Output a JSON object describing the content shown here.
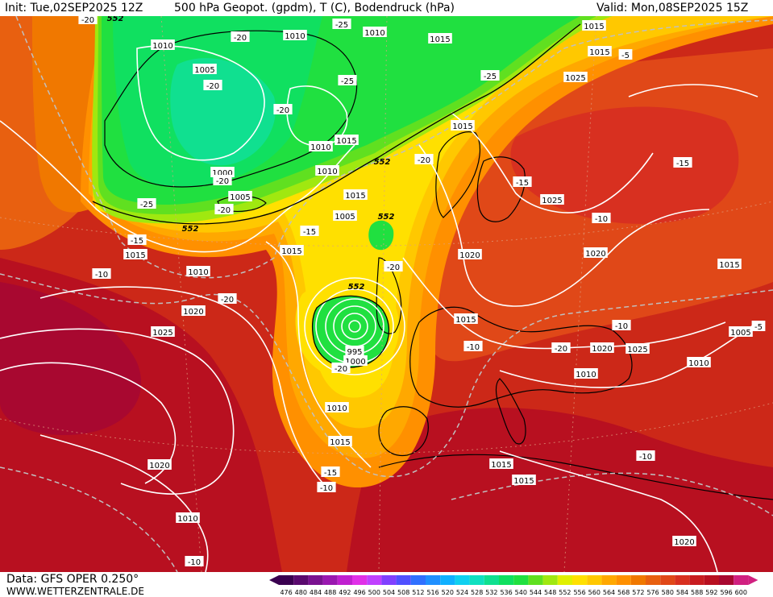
{
  "header": {
    "init": "Init: Tue,02SEP2025 12Z",
    "title": "500 hPa Geopot. (gpdm), T (C), Bodendruck (hPa)",
    "valid": "Valid: Mon,08SEP2025 15Z"
  },
  "footer": {
    "data_source": "Data: GFS OPER 0.250°",
    "website": "WWW.WETTERZENTRALE.DE"
  },
  "legend": {
    "values": [
      "476",
      "480",
      "484",
      "488",
      "492",
      "496",
      "500",
      "504",
      "508",
      "512",
      "516",
      "520",
      "524",
      "528",
      "532",
      "536",
      "540",
      "544",
      "548",
      "552",
      "556",
      "560",
      "564",
      "568",
      "572",
      "576",
      "580",
      "584",
      "588",
      "592",
      "596",
      "600"
    ],
    "colors": [
      "#3a0050",
      "#5a0a6e",
      "#7a1290",
      "#9a18b0",
      "#c020d0",
      "#e030e8",
      "#c040ff",
      "#8040ff",
      "#5050ff",
      "#3070ff",
      "#2090ff",
      "#10b0ff",
      "#10d0f0",
      "#10e0c0",
      "#10e090",
      "#10e060",
      "#20e040",
      "#60e020",
      "#a0e810",
      "#e0f000",
      "#ffe000",
      "#ffc800",
      "#ffa800",
      "#ff9000",
      "#f07800",
      "#e86010",
      "#e04818",
      "#d83020",
      "#c81c20",
      "#b81020",
      "#a80830",
      "#d02080"
    ]
  },
  "labels": {
    "pressure": [
      "1010",
      "1010",
      "1010",
      "1015",
      "1005",
      "1000",
      "1005",
      "1010",
      "1015",
      "1010",
      "1015",
      "1005",
      "995",
      "1000",
      "1010",
      "1015",
      "1015",
      "1020",
      "1025",
      "1020",
      "1015",
      "1025",
      "1020",
      "1020",
      "1015",
      "1015",
      "1015",
      "1015",
      "1015",
      "1010",
      "1015",
      "1005",
      "1010",
      "1020",
      "1025",
      "1010",
      "1010",
      "1020",
      "1025",
      "1015"
    ],
    "temperature": [
      "-20",
      "-20",
      "-20",
      "-25",
      "-20",
      "-20",
      "-25",
      "-25",
      "-25",
      "-20",
      "-20",
      "-15",
      "-15",
      "-10",
      "-20",
      "-20",
      "-15",
      "-10",
      "-15",
      "-10",
      "-5",
      "-15",
      "-15",
      "-10",
      "-10",
      "-20",
      "-10",
      "-5",
      "-10",
      "-20"
    ],
    "geopotential": [
      "552",
      "552",
      "552",
      "552",
      "552"
    ]
  },
  "colors": {
    "height_contour": "#ffffff",
    "temperature_contour": "#c0c0c0",
    "coastline": "#000000",
    "label_box": "#ffffff"
  }
}
